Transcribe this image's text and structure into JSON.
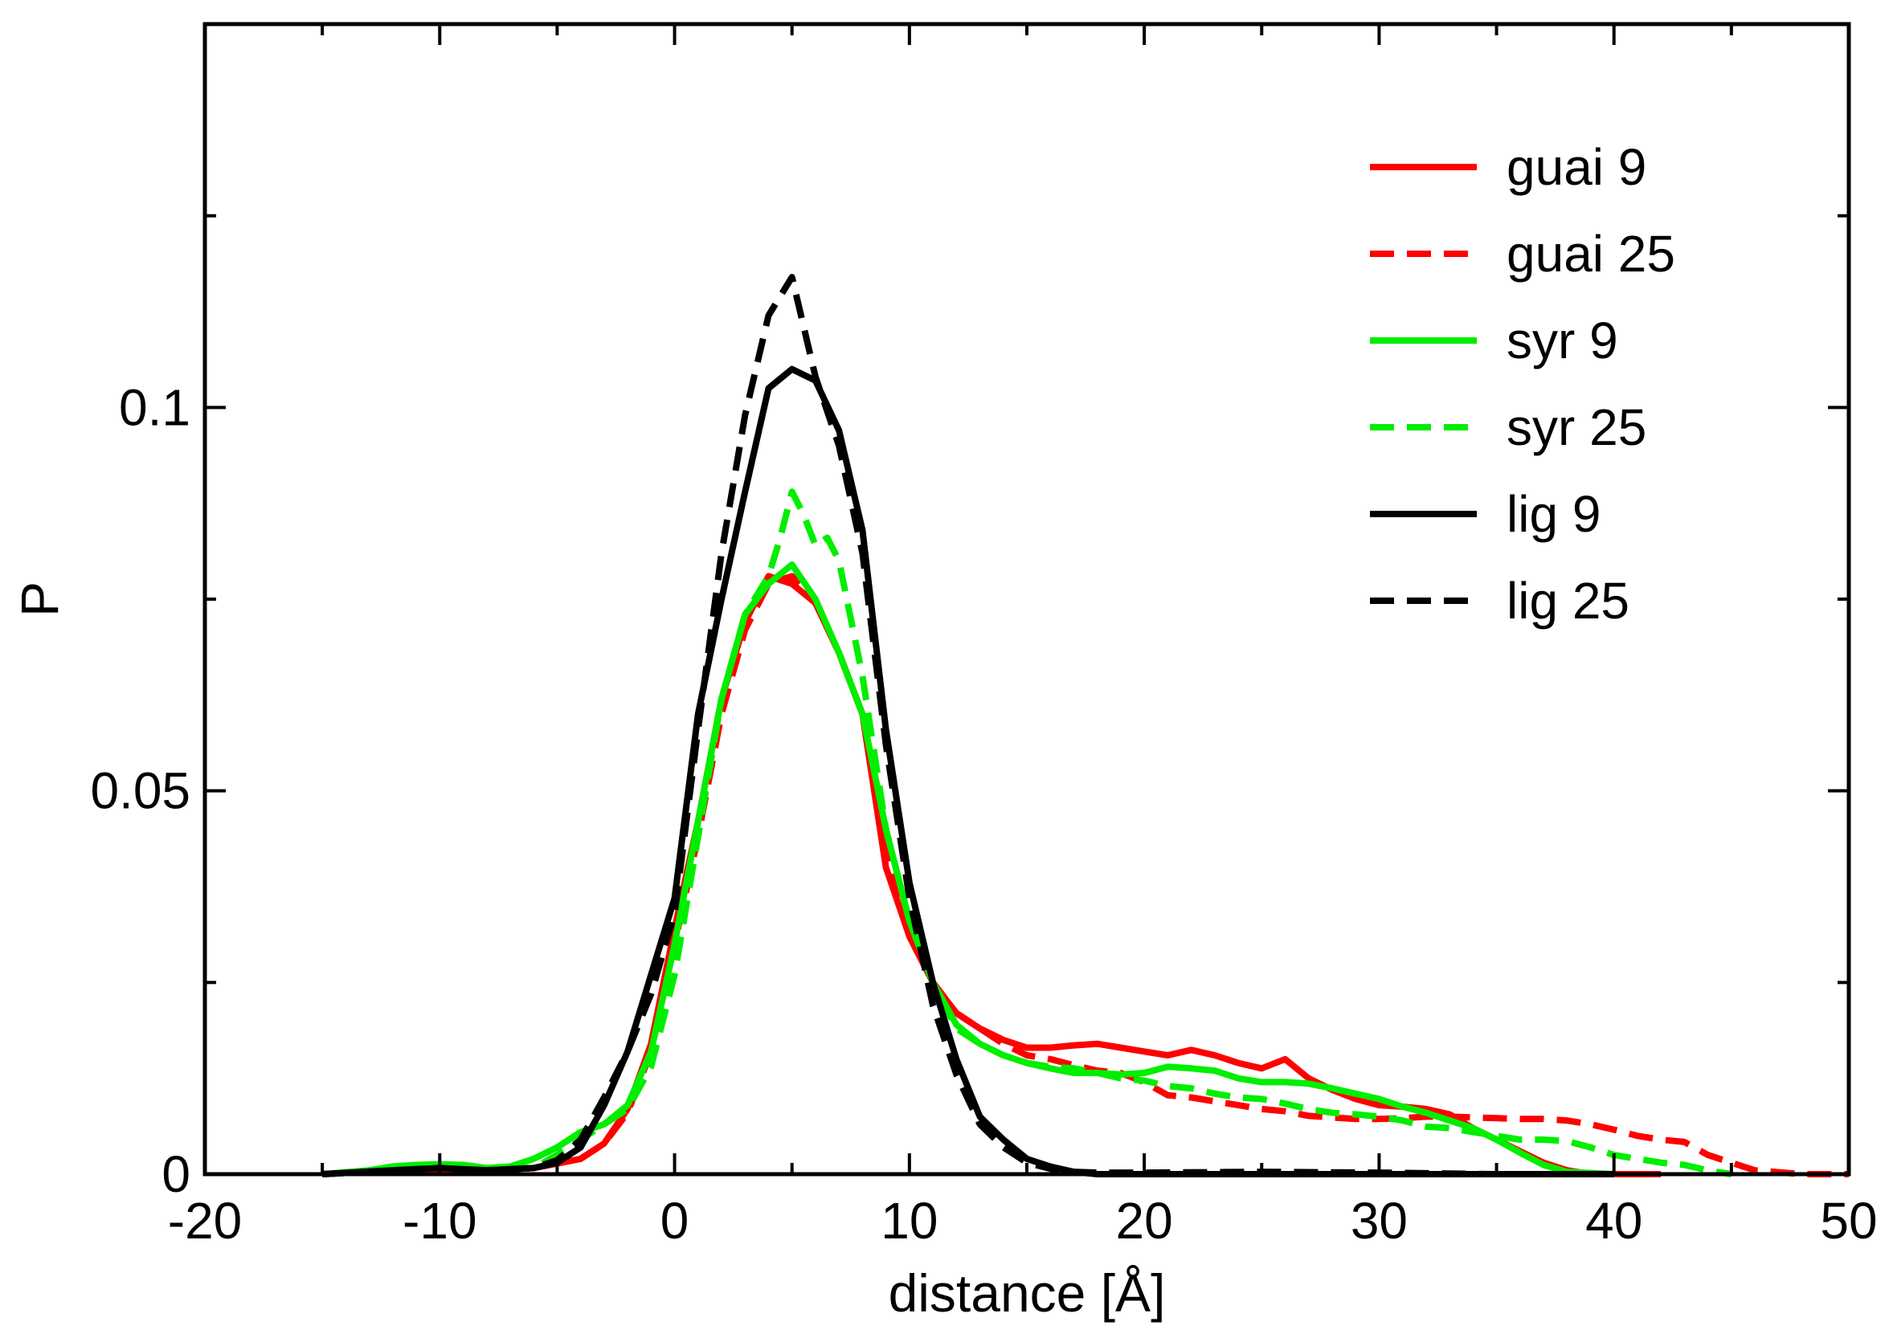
{
  "chart_data": {
    "type": "line",
    "title": "",
    "xlabel": "distance [Å]",
    "ylabel": "P",
    "xlim": [
      -20,
      50
    ],
    "ylim": [
      0,
      0.15
    ],
    "x_ticks": [
      -20,
      -10,
      0,
      10,
      20,
      30,
      40,
      50
    ],
    "x_tick_labels": [
      "-20",
      "-10",
      "0",
      "10",
      "20",
      "30",
      "40",
      "50"
    ],
    "y_ticks": [
      0,
      0.05,
      0.1
    ],
    "y_tick_labels": [
      "0",
      "0.05",
      "0.1"
    ],
    "legend_position": "top-right",
    "series": [
      {
        "name": "guai 9",
        "color": "#ff0000",
        "dash": "solid",
        "x": [
          -15,
          -12,
          -10,
          -8,
          -6,
          -4,
          -3,
          -2,
          -1,
          0,
          1,
          2,
          3,
          4,
          5,
          6,
          7,
          8,
          9,
          10,
          11,
          12,
          13,
          14,
          15,
          16,
          17,
          18,
          19,
          20,
          21,
          22,
          23,
          24,
          25,
          26,
          27,
          28,
          29,
          30,
          31,
          32,
          33,
          34,
          35,
          36,
          37,
          38,
          39,
          40,
          42
        ],
        "y": [
          0,
          0.0005,
          0.0005,
          0.0005,
          0.0008,
          0.002,
          0.004,
          0.0085,
          0.017,
          0.032,
          0.046,
          0.062,
          0.072,
          0.078,
          0.077,
          0.0745,
          0.068,
          0.06,
          0.04,
          0.031,
          0.025,
          0.021,
          0.019,
          0.0175,
          0.0165,
          0.0165,
          0.0168,
          0.017,
          0.0165,
          0.016,
          0.0155,
          0.0162,
          0.0155,
          0.0145,
          0.0138,
          0.015,
          0.0125,
          0.011,
          0.0098,
          0.009,
          0.0088,
          0.0085,
          0.0078,
          0.006,
          0.0045,
          0.003,
          0.0015,
          0.0005,
          0,
          0,
          0
        ]
      },
      {
        "name": "guai 25",
        "color": "#ff0000",
        "dash": "dashed",
        "x": [
          -15,
          -12,
          -10,
          -8,
          -6,
          -4,
          -3,
          -2,
          -1,
          0,
          1,
          2,
          3,
          4,
          5,
          6,
          7,
          8,
          9,
          10,
          11,
          12,
          13,
          14,
          15,
          16,
          17,
          18,
          19,
          20,
          21,
          22,
          23,
          24,
          25,
          26,
          27,
          28,
          29,
          30,
          31,
          32,
          33,
          34,
          35,
          36,
          37,
          38,
          39,
          40,
          41,
          42,
          43,
          44,
          45,
          46,
          48,
          50
        ],
        "y": [
          0,
          0.0005,
          0.0005,
          0.0005,
          0.0008,
          0.002,
          0.004,
          0.008,
          0.016,
          0.03,
          0.044,
          0.06,
          0.071,
          0.077,
          0.078,
          0.0745,
          0.068,
          0.06,
          0.042,
          0.031,
          0.025,
          0.021,
          0.019,
          0.017,
          0.0155,
          0.015,
          0.0142,
          0.0135,
          0.0132,
          0.012,
          0.0103,
          0.01,
          0.0095,
          0.009,
          0.0085,
          0.0082,
          0.0076,
          0.0074,
          0.0072,
          0.0072,
          0.0073,
          0.0075,
          0.0075,
          0.0074,
          0.0073,
          0.0072,
          0.0072,
          0.007,
          0.0065,
          0.0058,
          0.005,
          0.0045,
          0.0042,
          0.0025,
          0.0015,
          0.0005,
          0,
          0
        ]
      },
      {
        "name": "syr 9",
        "color": "#00ee00",
        "dash": "solid",
        "x": [
          -15,
          -13,
          -12,
          -11,
          -10,
          -9,
          -8,
          -7,
          -6,
          -5,
          -4,
          -3,
          -2,
          -1,
          0,
          1,
          2,
          3,
          4,
          5,
          6,
          7,
          8,
          9,
          10,
          11,
          12,
          13,
          14,
          15,
          16,
          17,
          18,
          19,
          20,
          21,
          22,
          23,
          24,
          25,
          26,
          27,
          28,
          29,
          30,
          31,
          32,
          33,
          34,
          35,
          36,
          37,
          38,
          40
        ],
        "y": [
          0,
          0.0005,
          0.001,
          0.0012,
          0.0013,
          0.0012,
          0.0008,
          0.001,
          0.002,
          0.0035,
          0.0055,
          0.0065,
          0.009,
          0.016,
          0.03,
          0.046,
          0.062,
          0.073,
          0.077,
          0.0795,
          0.075,
          0.068,
          0.06,
          0.045,
          0.033,
          0.025,
          0.0195,
          0.017,
          0.0155,
          0.0145,
          0.0138,
          0.0132,
          0.0132,
          0.013,
          0.0132,
          0.014,
          0.0138,
          0.0135,
          0.0125,
          0.012,
          0.012,
          0.0118,
          0.0112,
          0.0105,
          0.0098,
          0.0088,
          0.008,
          0.007,
          0.006,
          0.0045,
          0.0028,
          0.0012,
          0.0003,
          0
        ]
      },
      {
        "name": "syr 25",
        "color": "#00ee00",
        "dash": "dashed",
        "x": [
          -15,
          -12,
          -10,
          -8,
          -6,
          -5,
          -4,
          -3,
          -2,
          -1,
          0,
          1,
          2,
          3,
          4,
          4.5,
          5,
          5.5,
          6,
          6.5,
          7,
          8,
          9,
          10,
          11,
          12,
          13,
          14,
          15,
          16,
          17,
          18,
          19,
          20,
          21,
          22,
          23,
          24,
          25,
          26,
          27,
          28,
          29,
          30,
          31,
          32,
          33,
          34,
          35,
          36,
          37,
          38,
          39,
          40,
          41,
          42,
          43,
          44,
          45
        ],
        "y": [
          0,
          0.0005,
          0.0008,
          0.0006,
          0.0008,
          0.0025,
          0.0045,
          0.0065,
          0.0085,
          0.014,
          0.026,
          0.044,
          0.062,
          0.073,
          0.078,
          0.083,
          0.089,
          0.086,
          0.082,
          0.083,
          0.08,
          0.065,
          0.045,
          0.033,
          0.025,
          0.019,
          0.017,
          0.0155,
          0.0145,
          0.014,
          0.0138,
          0.0132,
          0.0125,
          0.0122,
          0.0115,
          0.0112,
          0.0105,
          0.01,
          0.0098,
          0.0092,
          0.0085,
          0.008,
          0.0078,
          0.0075,
          0.007,
          0.0062,
          0.006,
          0.0055,
          0.005,
          0.0045,
          0.0045,
          0.0043,
          0.0035,
          0.0025,
          0.002,
          0.0015,
          0.0012,
          0.0005,
          0
        ]
      },
      {
        "name": "lig 9",
        "color": "#000000",
        "dash": "solid",
        "x": [
          -15,
          -12,
          -10,
          -8,
          -6,
          -5,
          -4,
          -3,
          -2,
          -1,
          0,
          1,
          2,
          3,
          4,
          5,
          6,
          7,
          8,
          9,
          10,
          11,
          12,
          13,
          14,
          15,
          16,
          17,
          18,
          20,
          25,
          30,
          35,
          40
        ],
        "y": [
          0,
          0.0005,
          0.0008,
          0.0005,
          0.0008,
          0.0015,
          0.0035,
          0.009,
          0.016,
          0.026,
          0.036,
          0.06,
          0.075,
          0.089,
          0.1025,
          0.105,
          0.1035,
          0.097,
          0.084,
          0.058,
          0.038,
          0.025,
          0.015,
          0.0075,
          0.0045,
          0.002,
          0.001,
          0.0003,
          0,
          0,
          0,
          0,
          0,
          0
        ]
      },
      {
        "name": "lig 25",
        "color": "#000000",
        "dash": "dashed",
        "x": [
          -15,
          -12,
          -10,
          -8,
          -6,
          -5,
          -4,
          -3,
          -2,
          -1,
          0,
          1,
          2,
          3,
          4,
          5,
          6,
          7,
          8,
          9,
          10,
          11,
          12,
          13,
          14,
          15,
          16,
          17,
          18,
          20,
          25,
          30,
          35,
          40
        ],
        "y": [
          0,
          0.0005,
          0.0008,
          0.0005,
          0.0008,
          0.0018,
          0.0045,
          0.01,
          0.016,
          0.0235,
          0.034,
          0.058,
          0.081,
          0.099,
          0.112,
          0.117,
          0.104,
          0.095,
          0.081,
          0.056,
          0.036,
          0.022,
          0.013,
          0.0065,
          0.0035,
          0.0015,
          0.0007,
          0.0003,
          0.0002,
          0.0002,
          0.0003,
          0.0002,
          0,
          0
        ]
      }
    ]
  }
}
